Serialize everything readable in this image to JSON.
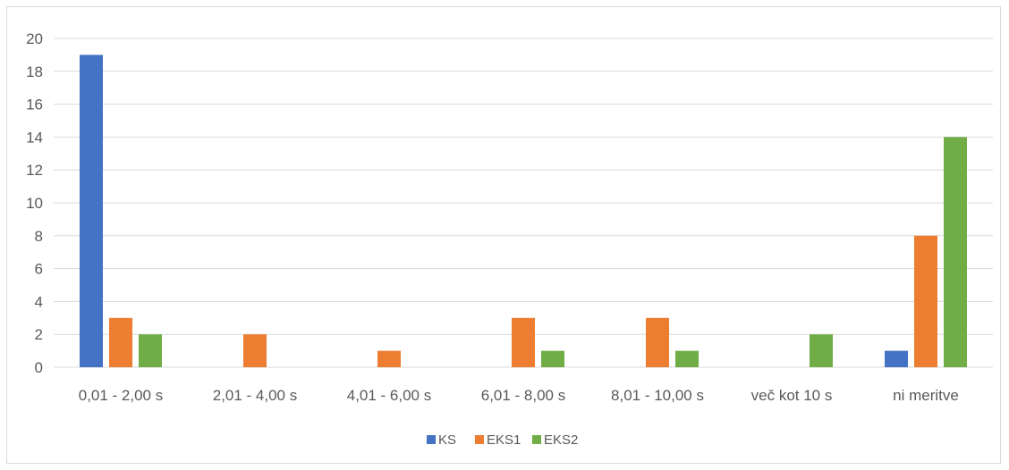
{
  "chart_data": {
    "type": "bar",
    "title": "",
    "xlabel": "",
    "ylabel": "",
    "categories": [
      "0,01 - 2,00 s",
      "2,01 - 4,00 s",
      "4,01 - 6,00 s",
      "6,01 - 8,00 s",
      "8,01 - 10,00 s",
      "več kot 10 s",
      "ni meritve"
    ],
    "series": [
      {
        "name": "KS",
        "color": "#4472c4",
        "values": [
          19,
          0,
          0,
          0,
          0,
          0,
          1
        ]
      },
      {
        "name": "EKS1",
        "color": "#ed7d31",
        "values": [
          3,
          2,
          1,
          3,
          3,
          0,
          8
        ]
      },
      {
        "name": "EKS2",
        "color": "#70ad47",
        "values": [
          2,
          0,
          0,
          1,
          1,
          2,
          14
        ]
      }
    ],
    "ylim": [
      0,
      20
    ],
    "yticks": [
      "0",
      "2",
      "4",
      "6",
      "8",
      "10",
      "12",
      "14",
      "16",
      "18",
      "20"
    ],
    "grid": true,
    "legend_position": "bottom"
  }
}
